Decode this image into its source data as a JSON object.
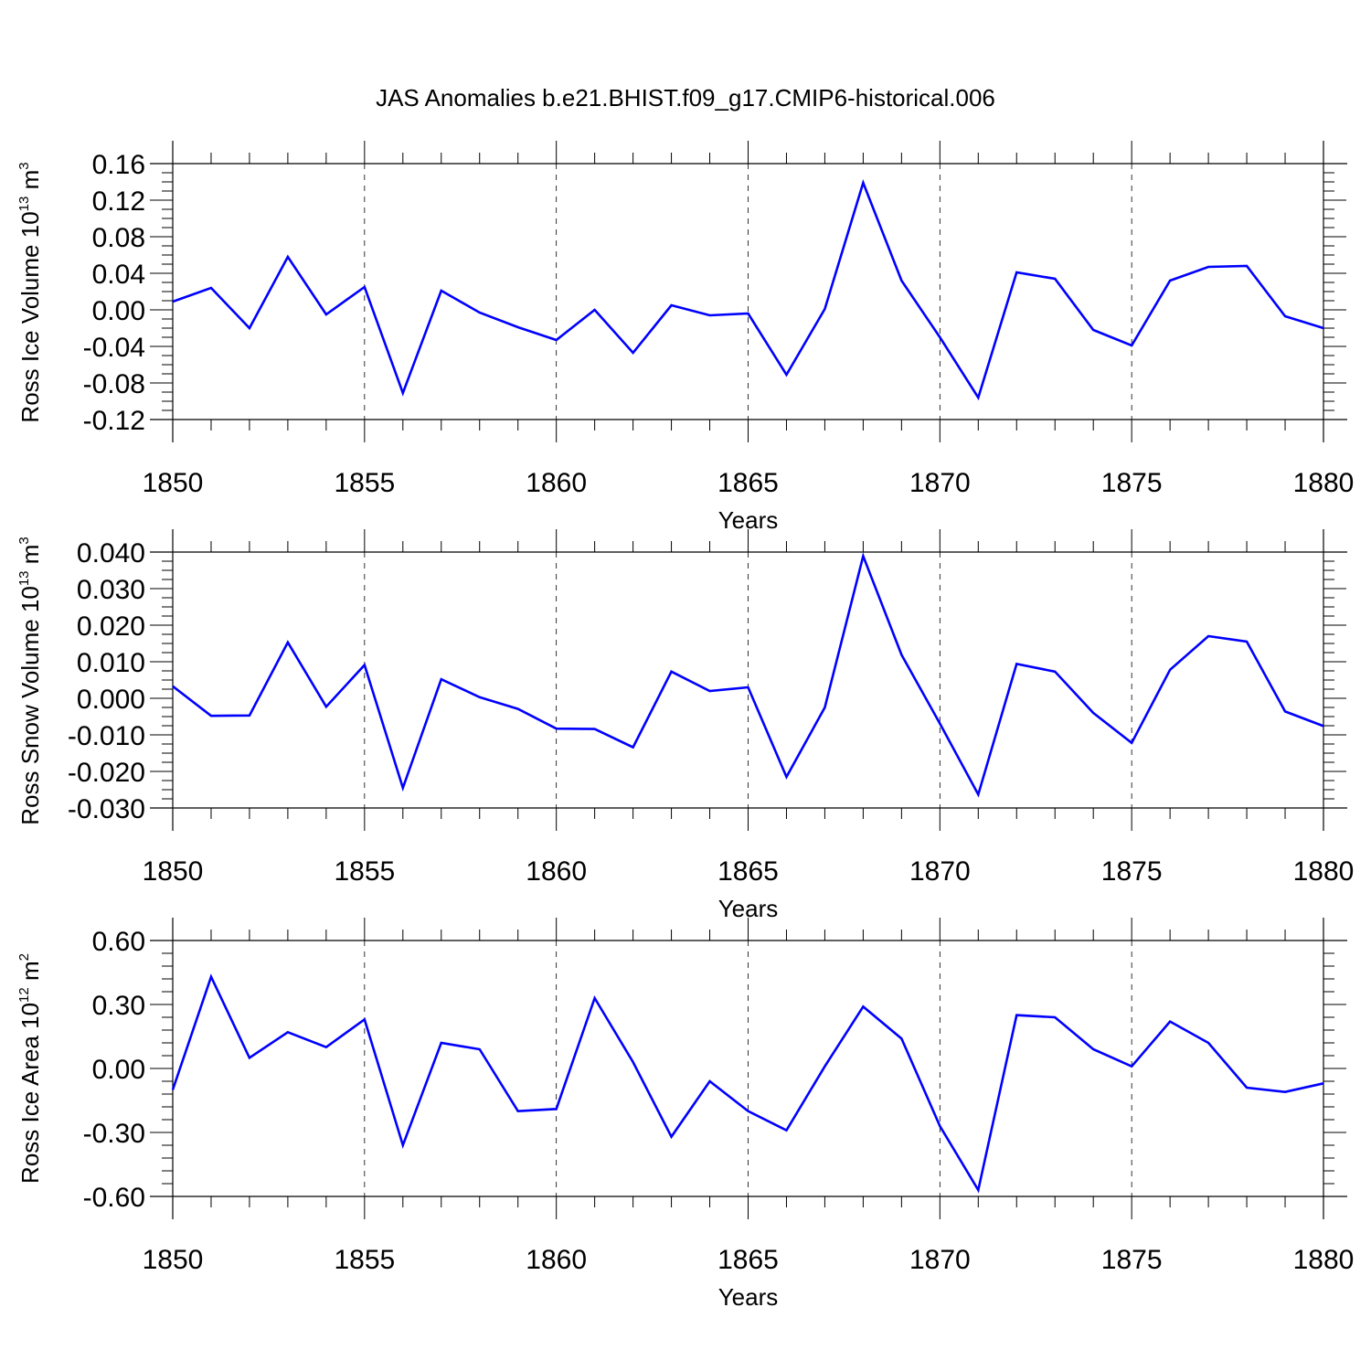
{
  "title": "JAS Anomalies b.e21.BHIST.f09_g17.CMIP6-historical.006",
  "line_color": "#0000ff",
  "chart_data": [
    {
      "type": "line",
      "ylabel": {
        "base": "Ross Ice Volume 10",
        "exp": "13",
        "unit": " m",
        "unit_exp": "3"
      },
      "xlabel": "Years",
      "xlim": [
        1850,
        1880
      ],
      "ylim": [
        -0.12,
        0.16
      ],
      "yticks": [
        "0.16",
        "0.12",
        "0.08",
        "0.04",
        "0.00",
        "-0.04",
        "-0.08",
        "-0.12"
      ],
      "ytick_values": [
        0.16,
        0.12,
        0.08,
        0.04,
        0.0,
        -0.04,
        -0.08,
        -0.12
      ],
      "xticks": [
        "1850",
        "1855",
        "1860",
        "1865",
        "1870",
        "1875",
        "1880"
      ],
      "xtick_values": [
        1850,
        1855,
        1860,
        1865,
        1870,
        1875,
        1880
      ],
      "grid": "dashed vertical at major x ticks",
      "x": [
        1850,
        1851,
        1852,
        1853,
        1854,
        1855,
        1856,
        1857,
        1858,
        1859,
        1860,
        1861,
        1862,
        1863,
        1864,
        1865,
        1866,
        1867,
        1868,
        1869,
        1870,
        1871,
        1872,
        1873,
        1874,
        1875,
        1876,
        1877,
        1878,
        1879,
        1880
      ],
      "y": [
        0.009,
        0.024,
        -0.02,
        0.058,
        -0.005,
        0.025,
        -0.091,
        0.021,
        -0.003,
        -0.019,
        -0.033,
        0.0,
        -0.047,
        0.005,
        -0.006,
        -0.004,
        -0.071,
        0.001,
        0.139,
        0.032,
        -0.03,
        -0.096,
        0.041,
        0.034,
        -0.022,
        -0.039,
        0.032,
        0.047,
        0.048,
        -0.007,
        -0.02
      ]
    },
    {
      "type": "line",
      "ylabel": {
        "base": "Ross Snow Volume 10",
        "exp": "13",
        "unit": " m",
        "unit_exp": "3"
      },
      "xlabel": "Years",
      "xlim": [
        1850,
        1880
      ],
      "ylim": [
        -0.03,
        0.04
      ],
      "yticks": [
        "0.040",
        "0.030",
        "0.020",
        "0.010",
        "0.000",
        "-0.010",
        "-0.020",
        "-0.030"
      ],
      "ytick_values": [
        0.04,
        0.03,
        0.02,
        0.01,
        0.0,
        -0.01,
        -0.02,
        -0.03
      ],
      "xticks": [
        "1850",
        "1855",
        "1860",
        "1865",
        "1870",
        "1875",
        "1880"
      ],
      "xtick_values": [
        1850,
        1855,
        1860,
        1865,
        1870,
        1875,
        1880
      ],
      "grid": "dashed vertical at major x ticks",
      "x": [
        1850,
        1851,
        1852,
        1853,
        1854,
        1855,
        1856,
        1857,
        1858,
        1859,
        1860,
        1861,
        1862,
        1863,
        1864,
        1865,
        1866,
        1867,
        1868,
        1869,
        1870,
        1871,
        1872,
        1873,
        1874,
        1875,
        1876,
        1877,
        1878,
        1879,
        1880
      ],
      "y": [
        0.0033,
        -0.0048,
        -0.0047,
        0.0153,
        -0.0023,
        0.0091,
        -0.0245,
        0.0052,
        0.0003,
        -0.0029,
        -0.0083,
        -0.0084,
        -0.0134,
        0.0073,
        0.002,
        0.003,
        -0.0215,
        -0.0025,
        0.0389,
        0.0119,
        -0.0069,
        -0.0263,
        0.0094,
        0.0073,
        -0.004,
        -0.0122,
        0.0078,
        0.017,
        0.0155,
        -0.0036,
        -0.0076
      ]
    },
    {
      "type": "line",
      "ylabel": {
        "base": "Ross Ice Area 10",
        "exp": "12",
        "unit": " m",
        "unit_exp": "2"
      },
      "xlabel": "Years",
      "xlim": [
        1850,
        1880
      ],
      "ylim": [
        -0.6,
        0.6
      ],
      "yticks": [
        "0.60",
        "0.30",
        "0.00",
        "-0.30",
        "-0.60"
      ],
      "ytick_values": [
        0.6,
        0.3,
        0.0,
        -0.3,
        -0.6
      ],
      "xticks": [
        "1850",
        "1855",
        "1860",
        "1865",
        "1870",
        "1875",
        "1880"
      ],
      "xtick_values": [
        1850,
        1855,
        1860,
        1865,
        1870,
        1875,
        1880
      ],
      "grid": "dashed vertical at major x ticks",
      "x": [
        1850,
        1851,
        1852,
        1853,
        1854,
        1855,
        1856,
        1857,
        1858,
        1859,
        1860,
        1861,
        1862,
        1863,
        1864,
        1865,
        1866,
        1867,
        1868,
        1869,
        1870,
        1871,
        1872,
        1873,
        1874,
        1875,
        1876,
        1877,
        1878,
        1879,
        1880
      ],
      "y": [
        -0.1,
        0.43,
        0.05,
        0.17,
        0.1,
        0.23,
        -0.36,
        0.12,
        0.09,
        -0.2,
        -0.19,
        0.33,
        0.03,
        -0.32,
        -0.06,
        -0.2,
        -0.29,
        0.01,
        0.29,
        0.14,
        -0.27,
        -0.57,
        0.25,
        0.24,
        0.09,
        0.01,
        0.22,
        0.12,
        -0.09,
        -0.11,
        -0.07
      ]
    }
  ]
}
